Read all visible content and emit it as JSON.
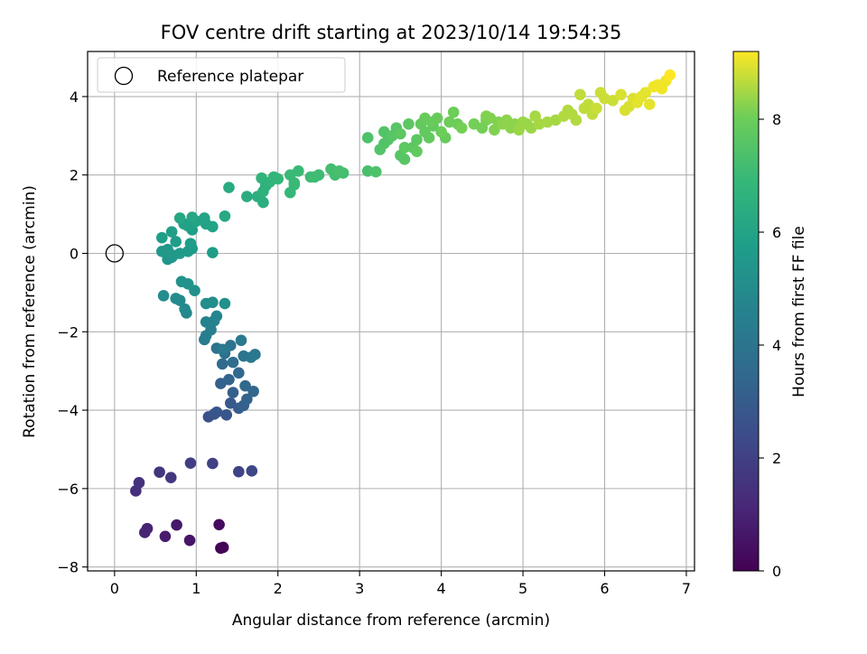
{
  "chart_data": {
    "type": "scatter",
    "title": "FOV centre drift starting at 2023/10/14 19:54:35",
    "xlabel": "Angular distance from reference (arcmin)",
    "ylabel": "Rotation from reference (arcmin)",
    "xlim": [
      -0.33,
      7.1
    ],
    "ylim": [
      -8.1,
      5.15
    ],
    "xticks": [
      0,
      1,
      2,
      3,
      4,
      5,
      6,
      7
    ],
    "yticks": [
      -8,
      -6,
      -4,
      -2,
      0,
      2,
      4
    ],
    "grid": true,
    "legend": {
      "placement": "top-left",
      "entries": [
        "Reference platepar"
      ]
    },
    "reference_point": {
      "label": "Reference platepar",
      "x": 0,
      "y": 0
    },
    "colorbar": {
      "label": "Hours from first FF file",
      "colormap": "viridis",
      "range": [
        0,
        9.2
      ],
      "ticks": [
        0,
        2,
        4,
        6,
        8
      ]
    },
    "series": [
      {
        "points": [
          [
            1.3,
            -7.52,
            0.0
          ],
          [
            1.33,
            -7.5,
            0.1
          ],
          [
            1.28,
            -6.92,
            0.3
          ],
          [
            0.92,
            -7.32,
            0.6
          ],
          [
            0.76,
            -6.93,
            0.7
          ],
          [
            0.62,
            -7.22,
            0.8
          ],
          [
            0.4,
            -7.02,
            1.0
          ],
          [
            0.37,
            -7.12,
            1.1
          ],
          [
            0.26,
            -6.06,
            1.4
          ],
          [
            0.3,
            -5.85,
            1.5
          ],
          [
            0.55,
            -5.58,
            1.6
          ],
          [
            0.69,
            -5.72,
            1.7
          ],
          [
            0.93,
            -5.35,
            1.9
          ],
          [
            1.2,
            -5.36,
            2.0
          ],
          [
            1.52,
            -5.57,
            2.1
          ],
          [
            1.68,
            -5.55,
            2.2
          ],
          [
            1.15,
            -4.17,
            2.6
          ],
          [
            1.22,
            -4.1,
            2.7
          ],
          [
            1.25,
            -4.05,
            2.8
          ],
          [
            1.37,
            -4.12,
            2.8
          ],
          [
            1.42,
            -3.82,
            2.9
          ],
          [
            1.52,
            -3.95,
            3.0
          ],
          [
            1.45,
            -3.55,
            3.1
          ],
          [
            1.58,
            -3.88,
            3.2
          ],
          [
            1.3,
            -3.32,
            3.2
          ],
          [
            1.62,
            -3.72,
            3.3
          ],
          [
            1.4,
            -3.22,
            3.3
          ],
          [
            1.7,
            -3.52,
            3.4
          ],
          [
            1.52,
            -3.05,
            3.5
          ],
          [
            1.6,
            -3.38,
            3.5
          ],
          [
            1.32,
            -2.82,
            3.6
          ],
          [
            1.45,
            -2.78,
            3.7
          ],
          [
            1.35,
            -2.55,
            3.8
          ],
          [
            1.25,
            -2.42,
            3.9
          ],
          [
            1.42,
            -2.35,
            4.0
          ],
          [
            1.58,
            -2.62,
            4.0
          ],
          [
            1.72,
            -2.58,
            4.1
          ],
          [
            1.67,
            -2.65,
            4.1
          ],
          [
            1.55,
            -2.22,
            4.2
          ],
          [
            1.32,
            -2.45,
            4.2
          ],
          [
            1.1,
            -2.2,
            4.3
          ],
          [
            1.12,
            -2.1,
            4.4
          ],
          [
            1.18,
            -1.95,
            4.5
          ],
          [
            1.12,
            -1.75,
            4.6
          ],
          [
            1.22,
            -1.72,
            4.6
          ],
          [
            1.25,
            -1.6,
            4.7
          ],
          [
            0.88,
            -1.52,
            4.8
          ],
          [
            0.86,
            -1.42,
            4.9
          ],
          [
            0.8,
            -1.2,
            4.9
          ],
          [
            0.75,
            -1.15,
            5.0
          ],
          [
            0.6,
            -1.08,
            5.0
          ],
          [
            1.12,
            -1.28,
            5.1
          ],
          [
            1.2,
            -1.25,
            5.1
          ],
          [
            1.35,
            -1.28,
            5.2
          ],
          [
            0.98,
            -0.95,
            5.2
          ],
          [
            0.82,
            -0.72,
            5.3
          ],
          [
            0.9,
            -0.78,
            5.3
          ],
          [
            0.65,
            -0.15,
            5.4
          ],
          [
            0.7,
            -0.1,
            5.4
          ],
          [
            0.72,
            -0.05,
            5.5
          ],
          [
            0.58,
            0.05,
            5.5
          ],
          [
            0.65,
            0.1,
            5.5
          ],
          [
            0.8,
            0.0,
            5.6
          ],
          [
            0.9,
            0.05,
            5.6
          ],
          [
            0.95,
            0.12,
            5.6
          ],
          [
            1.2,
            0.02,
            5.7
          ],
          [
            0.93,
            0.25,
            5.7
          ],
          [
            0.75,
            0.3,
            5.7
          ],
          [
            0.58,
            0.4,
            5.8
          ],
          [
            0.7,
            0.55,
            5.8
          ],
          [
            0.95,
            0.6,
            5.8
          ],
          [
            0.9,
            0.7,
            5.9
          ],
          [
            0.85,
            0.75,
            5.9
          ],
          [
            1.12,
            0.75,
            5.9
          ],
          [
            1.2,
            0.68,
            6.0
          ],
          [
            1.1,
            0.9,
            6.0
          ],
          [
            1.0,
            0.82,
            6.0
          ],
          [
            0.8,
            0.9,
            6.1
          ],
          [
            0.95,
            0.92,
            6.1
          ],
          [
            1.35,
            0.95,
            6.2
          ],
          [
            1.4,
            1.68,
            6.3
          ],
          [
            1.62,
            1.45,
            6.4
          ],
          [
            1.75,
            1.45,
            6.5
          ],
          [
            1.82,
            1.3,
            6.5
          ],
          [
            1.82,
            1.58,
            6.6
          ],
          [
            1.85,
            1.72,
            6.6
          ],
          [
            1.8,
            1.92,
            6.7
          ],
          [
            1.9,
            1.82,
            6.7
          ],
          [
            1.95,
            1.95,
            6.8
          ],
          [
            2.0,
            1.9,
            6.8
          ],
          [
            2.15,
            1.55,
            6.9
          ],
          [
            2.2,
            1.75,
            6.9
          ],
          [
            2.15,
            2.0,
            7.0
          ],
          [
            2.25,
            2.1,
            7.0
          ],
          [
            2.2,
            1.8,
            7.0
          ],
          [
            2.4,
            1.95,
            7.1
          ],
          [
            2.5,
            2.0,
            7.1
          ],
          [
            2.45,
            1.95,
            7.1
          ],
          [
            2.65,
            2.15,
            7.2
          ],
          [
            2.7,
            2.0,
            7.2
          ],
          [
            2.8,
            2.05,
            7.2
          ],
          [
            2.75,
            2.1,
            7.3
          ],
          [
            3.1,
            2.1,
            7.3
          ],
          [
            3.2,
            2.08,
            7.4
          ],
          [
            3.1,
            2.95,
            7.4
          ],
          [
            3.25,
            2.65,
            7.5
          ],
          [
            3.3,
            2.8,
            7.5
          ],
          [
            3.35,
            2.9,
            7.5
          ],
          [
            3.3,
            3.1,
            7.5
          ],
          [
            3.4,
            3.0,
            7.6
          ],
          [
            3.45,
            3.2,
            7.6
          ],
          [
            3.5,
            2.5,
            7.6
          ],
          [
            3.55,
            2.4,
            7.6
          ],
          [
            3.55,
            2.7,
            7.7
          ],
          [
            3.5,
            3.05,
            7.7
          ],
          [
            3.6,
            3.3,
            7.7
          ],
          [
            3.65,
            2.7,
            7.7
          ],
          [
            3.7,
            2.9,
            7.7
          ],
          [
            3.7,
            2.6,
            7.8
          ],
          [
            3.8,
            3.1,
            7.8
          ],
          [
            3.85,
            2.95,
            7.8
          ],
          [
            3.9,
            3.25,
            7.8
          ],
          [
            3.75,
            3.3,
            7.8
          ],
          [
            3.8,
            3.45,
            7.9
          ],
          [
            3.88,
            3.35,
            7.9
          ],
          [
            3.95,
            3.45,
            7.9
          ],
          [
            4.05,
            2.95,
            7.9
          ],
          [
            4.0,
            3.1,
            8.0
          ],
          [
            4.1,
            3.35,
            8.0
          ],
          [
            4.15,
            3.6,
            8.0
          ],
          [
            4.2,
            3.3,
            8.0
          ],
          [
            4.25,
            3.2,
            8.1
          ],
          [
            4.4,
            3.3,
            8.1
          ],
          [
            4.5,
            3.2,
            8.1
          ],
          [
            4.55,
            3.4,
            8.1
          ],
          [
            4.55,
            3.5,
            8.2
          ],
          [
            4.6,
            3.45,
            8.2
          ],
          [
            4.65,
            3.15,
            8.2
          ],
          [
            4.7,
            3.35,
            8.2
          ],
          [
            4.75,
            3.3,
            8.3
          ],
          [
            4.8,
            3.4,
            8.3
          ],
          [
            4.85,
            3.2,
            8.3
          ],
          [
            4.9,
            3.3,
            8.3
          ],
          [
            4.95,
            3.15,
            8.4
          ],
          [
            5.0,
            3.35,
            8.4
          ],
          [
            5.05,
            3.3,
            8.4
          ],
          [
            5.1,
            3.2,
            8.4
          ],
          [
            5.15,
            3.5,
            8.5
          ],
          [
            5.2,
            3.3,
            8.5
          ],
          [
            5.3,
            3.35,
            8.5
          ],
          [
            5.4,
            3.4,
            8.5
          ],
          [
            5.5,
            3.5,
            8.6
          ],
          [
            5.55,
            3.65,
            8.6
          ],
          [
            5.6,
            3.55,
            8.6
          ],
          [
            5.65,
            3.4,
            8.6
          ],
          [
            5.7,
            4.05,
            8.7
          ],
          [
            5.75,
            3.7,
            8.7
          ],
          [
            5.8,
            3.8,
            8.7
          ],
          [
            5.85,
            3.55,
            8.7
          ],
          [
            5.9,
            3.7,
            8.8
          ],
          [
            5.95,
            4.1,
            8.8
          ],
          [
            6.0,
            3.95,
            8.8
          ],
          [
            6.1,
            3.9,
            8.8
          ],
          [
            6.2,
            4.05,
            8.9
          ],
          [
            6.25,
            3.65,
            8.9
          ],
          [
            6.3,
            3.75,
            8.9
          ],
          [
            6.35,
            3.95,
            8.9
          ],
          [
            6.4,
            3.85,
            9.0
          ],
          [
            6.45,
            4.0,
            9.0
          ],
          [
            6.5,
            4.1,
            9.0
          ],
          [
            6.55,
            3.8,
            9.0
          ],
          [
            6.6,
            4.25,
            9.1
          ],
          [
            6.65,
            4.3,
            9.1
          ],
          [
            6.7,
            4.2,
            9.1
          ],
          [
            6.75,
            4.4,
            9.1
          ],
          [
            6.8,
            4.55,
            9.2
          ]
        ]
      }
    ]
  }
}
